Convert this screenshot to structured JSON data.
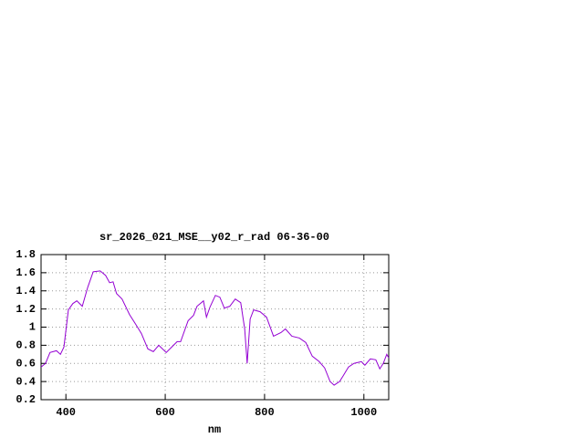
{
  "chart_data": {
    "type": "line",
    "title": "sr_2026_021_MSE__y02_r_rad 06-36-00",
    "x_label": "nm",
    "x": [
      350,
      359,
      368,
      381,
      389,
      396,
      405,
      414,
      422,
      433,
      444,
      455,
      469,
      480,
      488,
      495,
      502,
      513,
      528,
      543,
      552,
      565,
      576,
      587,
      602,
      613,
      624,
      631,
      646,
      657,
      664,
      677,
      683,
      690,
      701,
      710,
      719,
      730,
      741,
      752,
      760,
      765,
      771,
      778,
      791,
      804,
      818,
      833,
      842,
      855,
      870,
      883,
      896,
      910,
      921,
      932,
      940,
      951,
      958,
      969,
      980,
      995,
      1002,
      1013,
      1024,
      1032,
      1039,
      1046,
      1050
    ],
    "series": [
      {
        "color": "#9400d3",
        "values": [
          0.56,
          0.6,
          0.72,
          0.74,
          0.7,
          0.78,
          1.19,
          1.26,
          1.29,
          1.23,
          1.44,
          1.61,
          1.62,
          1.57,
          1.49,
          1.5,
          1.37,
          1.31,
          1.14,
          1.01,
          0.93,
          0.76,
          0.73,
          0.8,
          0.72,
          0.78,
          0.84,
          0.84,
          1.07,
          1.13,
          1.23,
          1.29,
          1.11,
          1.22,
          1.35,
          1.33,
          1.21,
          1.23,
          1.31,
          1.27,
          0.98,
          0.6,
          1.09,
          1.19,
          1.17,
          1.11,
          0.9,
          0.94,
          0.98,
          0.9,
          0.88,
          0.83,
          0.68,
          0.62,
          0.55,
          0.4,
          0.36,
          0.4,
          0.46,
          0.56,
          0.6,
          0.62,
          0.58,
          0.65,
          0.64,
          0.54,
          0.6,
          0.7,
          0.66
        ]
      }
    ],
    "xlim": [
      350,
      1050
    ],
    "ylim": [
      0.2,
      1.8
    ],
    "xticks": [
      400,
      600,
      800,
      1000
    ],
    "yticks": [
      0.2,
      0.4,
      0.6,
      0.8,
      1,
      1.2,
      1.4,
      1.6,
      1.8
    ],
    "grid": true
  }
}
